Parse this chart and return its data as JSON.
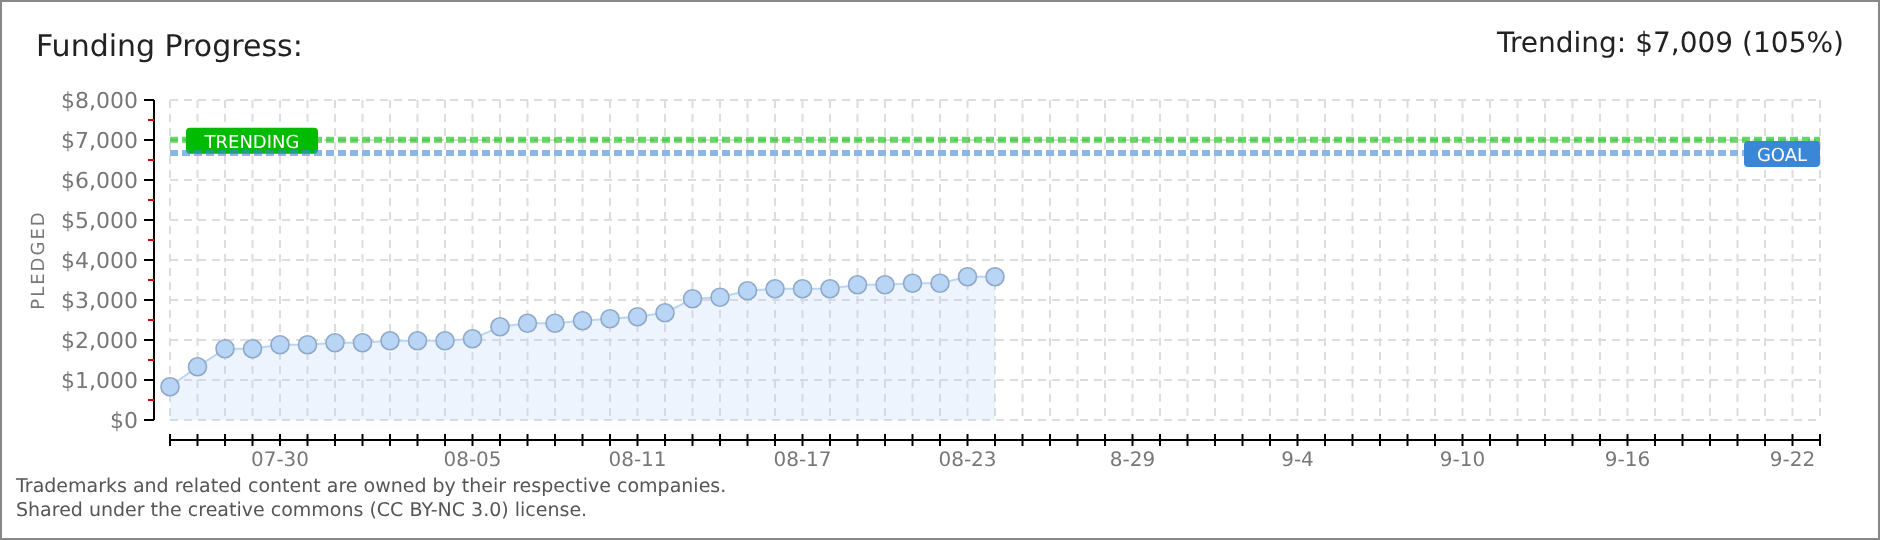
{
  "chart_data": {
    "type": "area",
    "title": "Funding Progress:",
    "subtitle": "Trending: $7,009 (105%)",
    "ylabel": "PLEDGED",
    "categories": [
      null,
      null,
      null,
      null,
      "07-30",
      null,
      null,
      null,
      null,
      null,
      null,
      "08-05",
      null,
      null,
      null,
      null,
      null,
      "08-11",
      null,
      null,
      null,
      null,
      null,
      "08-17",
      null,
      null,
      null,
      null,
      null,
      "08-23",
      null,
      null,
      null,
      null,
      null,
      "8-29",
      null,
      null,
      null,
      null,
      null,
      "9-4",
      null,
      null,
      null,
      null,
      null,
      "9-10",
      null,
      null,
      null,
      null,
      null,
      "9-16",
      null,
      null,
      null,
      null,
      null,
      "9-22",
      null
    ],
    "series": [
      {
        "color": "#b9d5f6",
        "values": [
          830,
          1330,
          1780,
          1780,
          1880,
          1880,
          1930,
          1930,
          1980,
          1980,
          1980,
          2030,
          2330,
          2420,
          2420,
          2480,
          2530,
          2580,
          2680,
          3030,
          3070,
          3230,
          3280,
          3280,
          3280,
          3380,
          3380,
          3420,
          3420,
          3580,
          3580,
          null,
          null,
          null,
          null,
          null,
          null,
          null,
          null,
          null,
          null,
          null,
          null,
          null,
          null,
          null,
          null,
          null,
          null,
          null,
          null,
          null,
          null,
          null,
          null,
          null,
          null,
          null,
          null,
          null,
          null
        ]
      }
    ],
    "ylim": [
      0,
      8000
    ],
    "yticks": [
      {
        "value": 0,
        "label": "$0"
      },
      {
        "value": 500,
        "label": null
      },
      {
        "value": 1000,
        "label": "$1,000"
      },
      {
        "value": 1500,
        "label": null
      },
      {
        "value": 2000,
        "label": "$2,000"
      },
      {
        "value": 2500,
        "label": null
      },
      {
        "value": 3000,
        "label": "$3,000"
      },
      {
        "value": 3500,
        "label": null
      },
      {
        "value": 4000,
        "label": "$4,000"
      },
      {
        "value": 4500,
        "label": null
      },
      {
        "value": 5000,
        "label": "$5,000"
      },
      {
        "value": 5500,
        "label": null
      },
      {
        "value": 6000,
        "label": "$6,000"
      },
      {
        "value": 6500,
        "label": null
      },
      {
        "value": 7000,
        "label": "$7,000"
      },
      {
        "value": 7500,
        "label": null
      },
      {
        "value": 8000,
        "label": "$8,000"
      }
    ],
    "grid": true,
    "marker": "circle",
    "ref_lines": [
      {
        "axis": "y",
        "value": 7009,
        "label": "TRENDING",
        "color": "#00bb00",
        "line_style": "dashed"
      },
      {
        "axis": "y",
        "value": 6675,
        "label": "GOAL",
        "color": "#3a87d8",
        "line_style": "dashed"
      }
    ],
    "annotations": [
      "Trademarks and related content are owned by their respective companies.",
      "Shared under the creative commons (CC BY-NC 3.0) license."
    ]
  }
}
